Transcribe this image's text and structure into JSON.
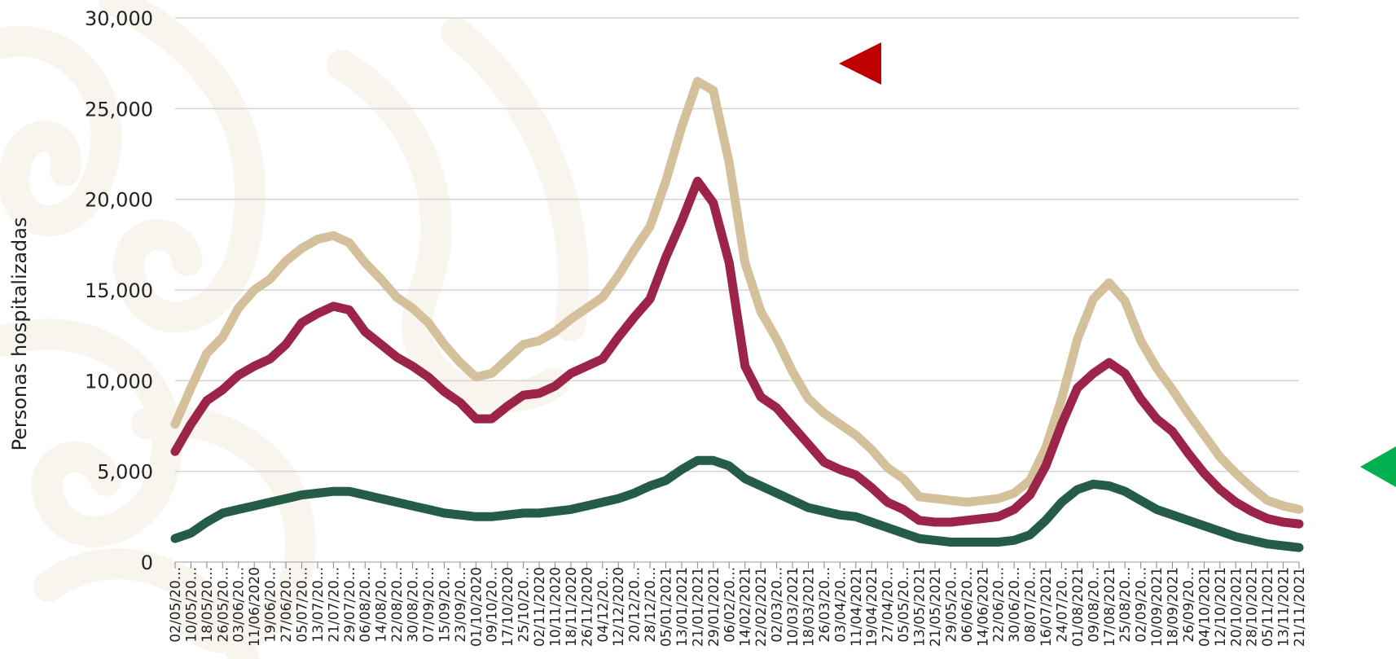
{
  "chart_data": {
    "type": "line",
    "ylabel": "Personas hospitalizadas",
    "ylim": [
      0,
      30000
    ],
    "yticks": [
      "0",
      "5,000",
      "10,000",
      "15,000",
      "20,000",
      "25,000",
      "30,000"
    ],
    "grid": true,
    "x_tick_labels": [
      "02/05/20...",
      "10/05/20...",
      "18/05/20...",
      "26/05/20...",
      "03/06/20...",
      "11/06/2020",
      "19/06/20...",
      "27/06/20...",
      "05/07/20...",
      "13/07/20...",
      "21/07/20...",
      "29/07/20...",
      "06/08/20...",
      "14/08/20...",
      "22/08/20...",
      "30/08/20...",
      "07/09/20...",
      "15/09/20...",
      "23/09/20...",
      "01/10/2020",
      "09/10/20...",
      "17/10/2020",
      "25/10/20...",
      "02/11/2020",
      "10/11/2020",
      "18/11/2020",
      "26/11/2020",
      "04/12/20...",
      "12/12/2020",
      "20/12/20...",
      "28/12/20...",
      "05/01/2021",
      "13/01/2021",
      "21/01/2021",
      "29/01/2021",
      "06/02/20...",
      "14/02/2021",
      "22/02/2021",
      "02/03/20...",
      "10/03/2021",
      "18/03/2021",
      "26/03/20...",
      "03/04/20...",
      "11/04/2021",
      "19/04/2021",
      "27/04/20...",
      "05/05/20...",
      "13/05/2021",
      "21/05/2021",
      "29/05/20...",
      "06/06/20...",
      "14/06/2021",
      "22/06/20...",
      "30/06/20...",
      "08/07/20...",
      "16/07/2021",
      "24/07/20...",
      "01/08/2021",
      "09/08/20...",
      "17/08/2021",
      "25/08/20...",
      "02/09/20...",
      "10/09/2021",
      "18/09/2021",
      "26/09/20...",
      "04/10/2021",
      "12/10/2021",
      "20/10/2021",
      "28/10/2021",
      "05/11/2021",
      "13/11/2021",
      "21/11/2021"
    ],
    "series": [
      {
        "color": "#d4c19c",
        "values": [
          7600,
          9600,
          11500,
          12400,
          14000,
          15000,
          15600,
          16600,
          17300,
          17800,
          18000,
          17600,
          16500,
          15600,
          14600,
          14000,
          13200,
          12000,
          11000,
          10200,
          10400,
          11200,
          12000,
          12200,
          12700,
          13400,
          14000,
          14600,
          15800,
          17200,
          18500,
          21000,
          24000,
          26500,
          26000,
          22000,
          16500,
          13800,
          12300,
          10500,
          9000,
          8200,
          7600,
          7000,
          6200,
          5200,
          4600,
          3600,
          3500,
          3400,
          3300,
          3400,
          3500,
          3800,
          4500,
          6300,
          9000,
          12300,
          14500,
          15400,
          14400,
          12200,
          10700,
          9500,
          8200,
          7000,
          5800,
          4900,
          4100,
          3400,
          3100,
          2900
        ]
      },
      {
        "color": "#9b2448",
        "values": [
          6100,
          7600,
          8900,
          9500,
          10300,
          10800,
          11200,
          12000,
          13200,
          13700,
          14100,
          13900,
          12700,
          12000,
          11300,
          10800,
          10200,
          9400,
          8800,
          7900,
          7900,
          8600,
          9200,
          9300,
          9700,
          10400,
          10800,
          11200,
          12400,
          13500,
          14500,
          16800,
          18800,
          21000,
          19800,
          16500,
          10800,
          9100,
          8500,
          7500,
          6500,
          5500,
          5100,
          4800,
          4100,
          3300,
          2900,
          2300,
          2200,
          2200,
          2300,
          2400,
          2500,
          2900,
          3700,
          5300,
          7600,
          9600,
          10400,
          11000,
          10400,
          9000,
          7900,
          7200,
          6000,
          4900,
          4000,
          3300,
          2800,
          2400,
          2200,
          2100
        ]
      },
      {
        "color": "#255c48",
        "values": [
          1300,
          1600,
          2200,
          2700,
          2900,
          3100,
          3300,
          3500,
          3700,
          3800,
          3900,
          3900,
          3700,
          3500,
          3300,
          3100,
          2900,
          2700,
          2600,
          2500,
          2500,
          2600,
          2700,
          2700,
          2800,
          2900,
          3100,
          3300,
          3500,
          3800,
          4200,
          4500,
          5100,
          5600,
          5600,
          5300,
          4600,
          4200,
          3800,
          3400,
          3000,
          2800,
          2600,
          2500,
          2200,
          1900,
          1600,
          1300,
          1200,
          1100,
          1100,
          1100,
          1100,
          1200,
          1500,
          2300,
          3300,
          4000,
          4300,
          4200,
          3900,
          3400,
          2900,
          2600,
          2300,
          2000,
          1700,
          1400,
          1200,
          1000,
          900,
          800
        ]
      }
    ]
  }
}
